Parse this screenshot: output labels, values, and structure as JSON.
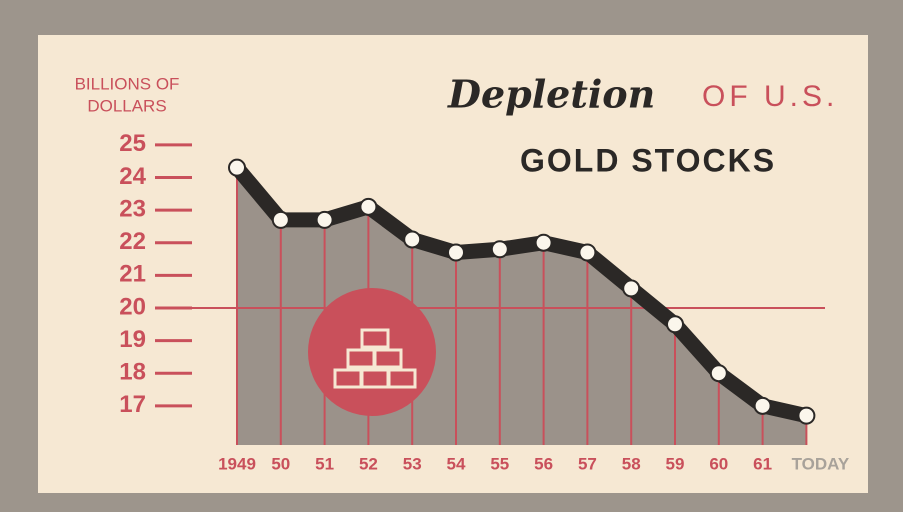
{
  "chart_data": {
    "type": "line",
    "title": {
      "script": "Depletion",
      "accent": "OF U.S.",
      "main": "GOLD STOCKS"
    },
    "ylabel": [
      "BILLIONS OF",
      "DOLLARS"
    ],
    "categories": [
      "1949",
      "50",
      "51",
      "52",
      "53",
      "54",
      "55",
      "56",
      "57",
      "58",
      "59",
      "60",
      "61",
      "TODAY"
    ],
    "values": [
      24.3,
      22.7,
      22.7,
      23.1,
      22.1,
      21.7,
      21.8,
      22.0,
      21.7,
      20.6,
      19.5,
      18.0,
      17.0,
      16.7
    ],
    "ylim": [
      15.8,
      25.7
    ],
    "yticks": [
      17,
      18,
      19,
      20,
      21,
      22,
      23,
      24,
      25
    ],
    "reference_line": 20,
    "color": "#2b2826",
    "area_color": "#9b928a",
    "accent_color": "#c9505b"
  }
}
